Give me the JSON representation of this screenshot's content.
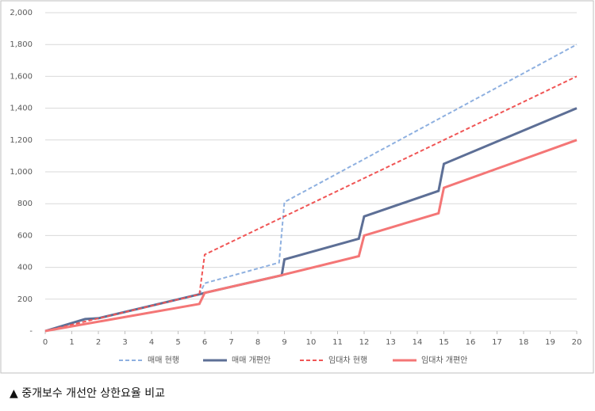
{
  "chart_data": {
    "type": "line",
    "xlim": [
      0,
      20
    ],
    "xticks": [
      0,
      1,
      2,
      3,
      4,
      5,
      6,
      7,
      8,
      9,
      10,
      11,
      12,
      13,
      14,
      15,
      16,
      17,
      18,
      19,
      20
    ],
    "ylim": [
      0,
      2000
    ],
    "yticks": [
      {
        "value": 0,
        "label": "-"
      },
      200,
      400,
      600,
      800,
      {
        "value": 1000,
        "label": "1,000"
      },
      {
        "value": 1200,
        "label": "1,200"
      },
      {
        "value": 1400,
        "label": "1,400"
      },
      {
        "value": 1600,
        "label": "1,600"
      },
      {
        "value": 1800,
        "label": "1,800"
      },
      {
        "value": 2000,
        "label": "2,000"
      }
    ],
    "grid": true,
    "legend": "bottom",
    "series": [
      {
        "name": "매매 현행",
        "color": "#8eb0e0",
        "dashed": true,
        "x": [
          0,
          1.5,
          2,
          5.8,
          6,
          8.8,
          9,
          20
        ],
        "values": [
          0,
          75,
          80,
          230,
          300,
          430,
          810,
          1800
        ]
      },
      {
        "name": "매매 개편안",
        "color": "#5d6f96",
        "dashed": false,
        "x": [
          0,
          1.5,
          2,
          5.9,
          6,
          8.9,
          9,
          11.8,
          12,
          14.8,
          15,
          20
        ],
        "values": [
          0,
          75,
          80,
          235,
          240,
          350,
          450,
          580,
          720,
          880,
          1050,
          1400
        ]
      },
      {
        "name": "임대차 현행",
        "color": "#f05555",
        "dashed": true,
        "x": [
          0,
          5.8,
          6,
          20
        ],
        "values": [
          0,
          230,
          480,
          1600
        ]
      },
      {
        "name": "임대차 개편안",
        "color": "#f47676",
        "dashed": false,
        "x": [
          0,
          5.8,
          6,
          8.9,
          9,
          11.8,
          12,
          14.8,
          15,
          20
        ],
        "values": [
          0,
          170,
          240,
          350,
          355,
          470,
          600,
          740,
          900,
          1200
        ]
      }
    ]
  },
  "caption": "▲ 중개보수 개선안 상한요율 비교"
}
